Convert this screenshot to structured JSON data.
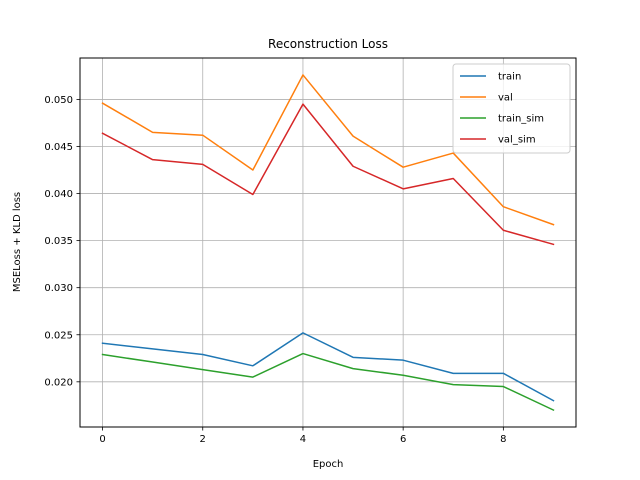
{
  "chart_data": {
    "type": "line",
    "title": "Reconstruction Loss",
    "xlabel": "Epoch",
    "ylabel": "MSELoss + KLD loss",
    "x": [
      0,
      1,
      2,
      3,
      4,
      5,
      6,
      7,
      8,
      9
    ],
    "xlim": [
      -0.45,
      9.45
    ],
    "ylim": [
      0.0152,
      0.0544
    ],
    "xticks": [
      0,
      2,
      4,
      6,
      8
    ],
    "xtick_labels": [
      "0",
      "2",
      "4",
      "6",
      "8"
    ],
    "yticks": [
      0.02,
      0.025,
      0.03,
      0.035,
      0.04,
      0.045,
      0.05
    ],
    "ytick_labels": [
      "0.020",
      "0.025",
      "0.030",
      "0.035",
      "0.040",
      "0.045",
      "0.050"
    ],
    "grid": true,
    "legend_position": "top-right",
    "series": [
      {
        "name": "train",
        "color": "#1f77b4",
        "values": [
          0.0241,
          0.0235,
          0.0229,
          0.0217,
          0.0252,
          0.0226,
          0.0223,
          0.0209,
          0.0209,
          0.018
        ]
      },
      {
        "name": "val",
        "color": "#ff7f0e",
        "values": [
          0.0496,
          0.0465,
          0.0462,
          0.0425,
          0.0526,
          0.0461,
          0.0428,
          0.0443,
          0.0386,
          0.0367
        ]
      },
      {
        "name": "train_sim",
        "color": "#2ca02c",
        "values": [
          0.0229,
          0.0221,
          0.0213,
          0.0205,
          0.023,
          0.0214,
          0.0207,
          0.0197,
          0.0195,
          0.017
        ]
      },
      {
        "name": "val_sim",
        "color": "#d62728",
        "values": [
          0.0464,
          0.0436,
          0.0431,
          0.0399,
          0.0495,
          0.0429,
          0.0405,
          0.0416,
          0.0361,
          0.0346
        ]
      }
    ]
  }
}
